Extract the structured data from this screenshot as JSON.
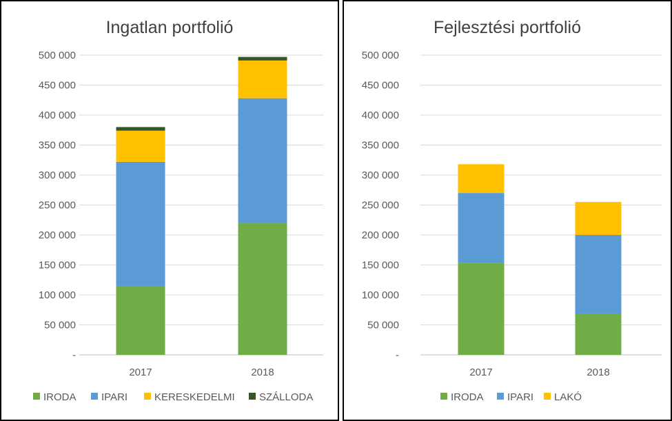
{
  "colors": {
    "IRODA": "#70ad47",
    "IPARI": "#5b9bd5",
    "KERESKEDELMI": "#ffc000",
    "SZÁLLODA": "#375623",
    "LAKÓ": "#ffc000",
    "grid": "#d9d9d9",
    "axis": "#bfbfbf"
  },
  "chart_data": [
    {
      "type": "bar",
      "stacked": true,
      "title": "Ingatlan portfolió",
      "categories": [
        "2017",
        "2018"
      ],
      "series": [
        {
          "name": "IRODA",
          "values": [
            115000,
            220000
          ]
        },
        {
          "name": "IPARI",
          "values": [
            207000,
            208000
          ]
        },
        {
          "name": "KERESKEDELMI",
          "values": [
            52000,
            63000
          ]
        },
        {
          "name": "SZÁLLODA",
          "values": [
            6000,
            6000
          ]
        }
      ],
      "ylim": [
        0,
        500000
      ],
      "yticks": [
        "-",
        "50 000",
        "100 000",
        "150 000",
        "200 000",
        "250 000",
        "300 000",
        "350 000",
        "400 000",
        "450 000",
        "500 000"
      ],
      "grid": true,
      "legend_position": "bottom"
    },
    {
      "type": "bar",
      "stacked": true,
      "title": "Fejlesztési portfolió",
      "categories": [
        "2017",
        "2018"
      ],
      "series": [
        {
          "name": "IRODA",
          "values": [
            153000,
            69000
          ]
        },
        {
          "name": "IPARI",
          "values": [
            117000,
            131000
          ]
        },
        {
          "name": "LAKÓ",
          "values": [
            48000,
            55000
          ]
        }
      ],
      "ylim": [
        0,
        500000
      ],
      "yticks": [
        "-",
        "50 000",
        "100 000",
        "150 000",
        "200 000",
        "250 000",
        "300 000",
        "350 000",
        "400 000",
        "450 000",
        "500 000"
      ],
      "grid": true,
      "legend_position": "bottom"
    }
  ]
}
